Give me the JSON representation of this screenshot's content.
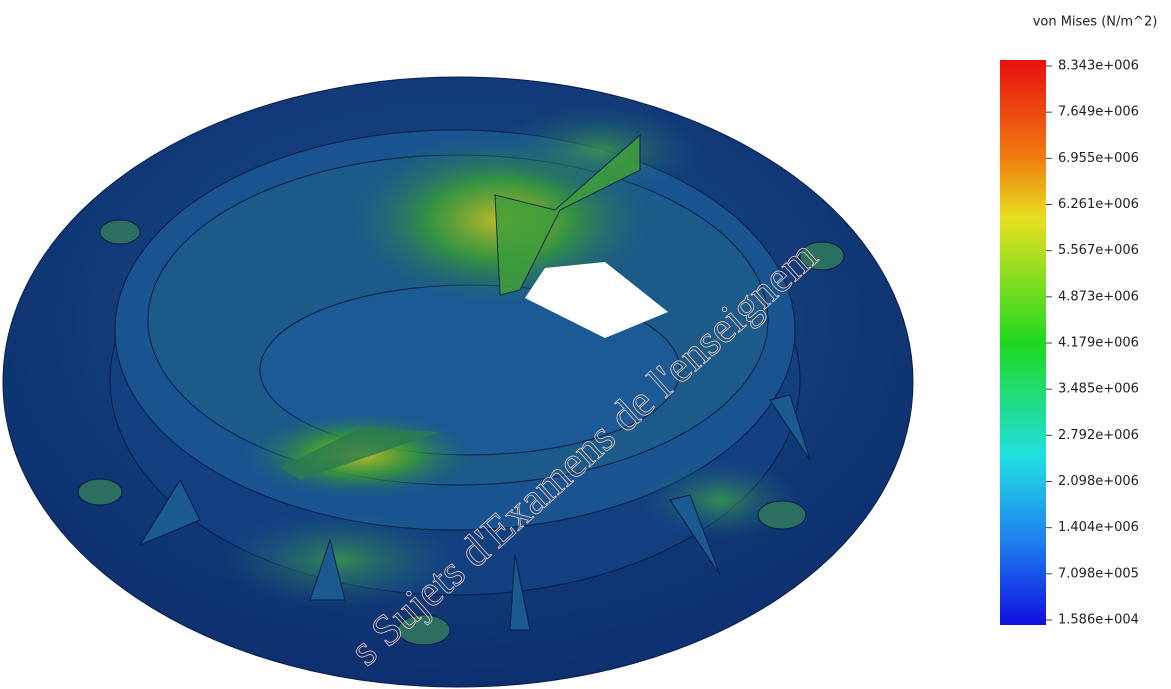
{
  "legend": {
    "title": "von Mises (N/m^2)",
    "labels": [
      "8.343e+006",
      "7.649e+006",
      "6.955e+006",
      "6.261e+006",
      "5.567e+006",
      "4.873e+006",
      "4.179e+006",
      "3.485e+006",
      "2.792e+006",
      "2.098e+006",
      "1.404e+006",
      "7.098e+005",
      "1.586e+004"
    ]
  },
  "watermark": "s Sujets d'Examens de l'enseignem"
}
